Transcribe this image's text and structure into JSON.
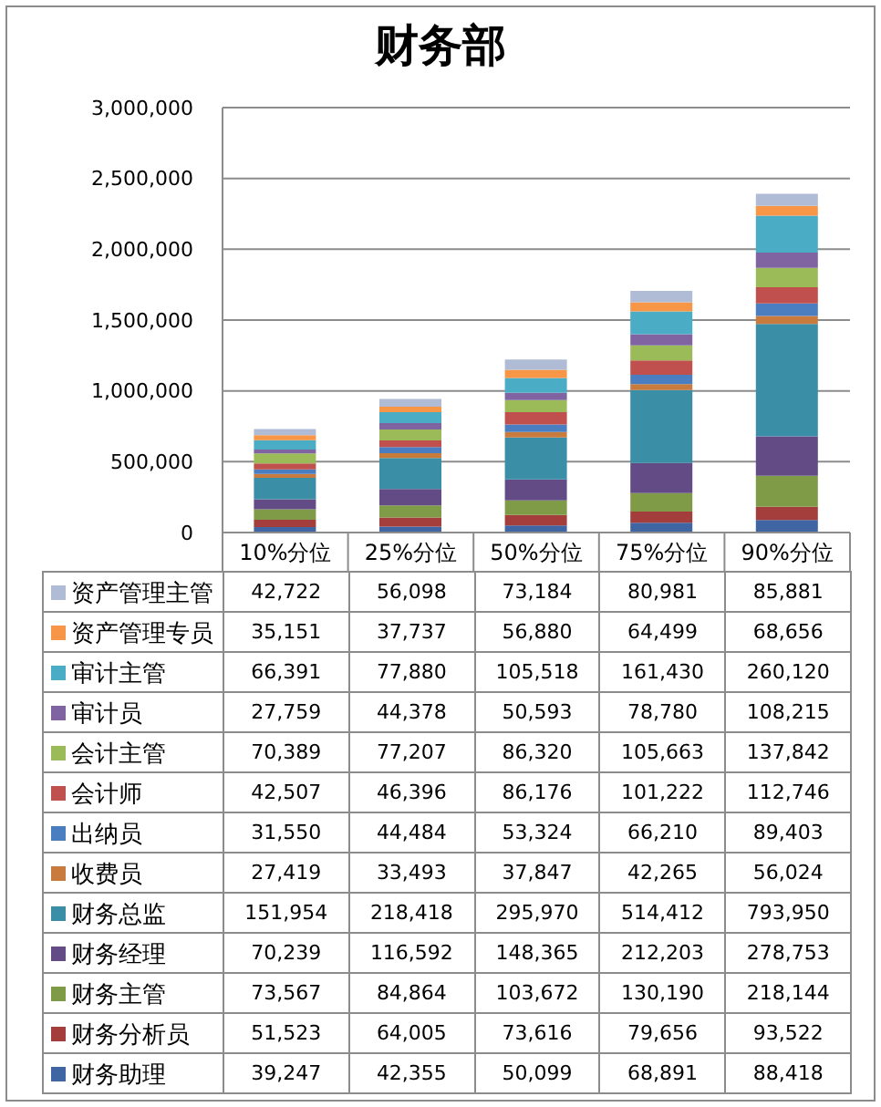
{
  "chart_data": {
    "type": "bar",
    "title": "财务部",
    "categories": [
      "10%分位",
      "25%分位",
      "50%分位",
      "75%分位",
      "90%分位"
    ],
    "series": [
      {
        "name": "财务助理",
        "color": "#3f65a3",
        "values": [
          39247,
          42355,
          50099,
          68891,
          88418
        ],
        "value_labels": [
          "39,247",
          "42,355",
          "50,099",
          "68,891",
          "88,418"
        ]
      },
      {
        "name": "财务分析员",
        "color": "#a33e3c",
        "values": [
          51523,
          64005,
          73616,
          79656,
          93522
        ],
        "value_labels": [
          "51,523",
          "64,005",
          "73,616",
          "79,656",
          "93,522"
        ]
      },
      {
        "name": "财务主管",
        "color": "#809b47",
        "values": [
          73567,
          84864,
          103672,
          130190,
          218144
        ],
        "value_labels": [
          "73,567",
          "84,864",
          "103,672",
          "130,190",
          "218,144"
        ]
      },
      {
        "name": "财务经理",
        "color": "#634c85",
        "values": [
          70239,
          116592,
          148365,
          212203,
          278753
        ],
        "value_labels": [
          "70,239",
          "116,592",
          "148,365",
          "212,203",
          "278,753"
        ]
      },
      {
        "name": "财务总监",
        "color": "#3a8ea6",
        "values": [
          151954,
          218418,
          295970,
          514412,
          793950
        ],
        "value_labels": [
          "151,954",
          "218,418",
          "295,970",
          "514,412",
          "793,950"
        ]
      },
      {
        "name": "收费员",
        "color": "#c97b3e",
        "values": [
          27419,
          33493,
          37847,
          42265,
          56024
        ],
        "value_labels": [
          "27,419",
          "33,493",
          "37,847",
          "42,265",
          "56,024"
        ]
      },
      {
        "name": "出纳员",
        "color": "#4a7ec0",
        "values": [
          31550,
          44484,
          53324,
          66210,
          89403
        ],
        "value_labels": [
          "31,550",
          "44,484",
          "53,324",
          "66,210",
          "89,403"
        ]
      },
      {
        "name": "会计师",
        "color": "#c0504d",
        "values": [
          42507,
          46396,
          86176,
          101222,
          112746
        ],
        "value_labels": [
          "42,507",
          "46,396",
          "86,176",
          "101,222",
          "112,746"
        ]
      },
      {
        "name": "会计主管",
        "color": "#9bbb59",
        "values": [
          70389,
          77207,
          86320,
          105663,
          137842
        ],
        "value_labels": [
          "70,389",
          "77,207",
          "86,320",
          "105,663",
          "137,842"
        ]
      },
      {
        "name": "审计员",
        "color": "#8064a2",
        "values": [
          27759,
          44378,
          50593,
          78780,
          108215
        ],
        "value_labels": [
          "27,759",
          "44,378",
          "50,593",
          "78,780",
          "108,215"
        ]
      },
      {
        "name": "审计主管",
        "color": "#4bacc6",
        "values": [
          66391,
          77880,
          105518,
          161430,
          260120
        ],
        "value_labels": [
          "66,391",
          "77,880",
          "105,518",
          "161,430",
          "260,120"
        ]
      },
      {
        "name": "资产管理专员",
        "color": "#f79646",
        "values": [
          35151,
          37737,
          56880,
          64499,
          68656
        ],
        "value_labels": [
          "35,151",
          "37,737",
          "56,880",
          "64,499",
          "68,656"
        ]
      },
      {
        "name": "资产管理主管",
        "color": "#b0bcd5",
        "values": [
          42722,
          56098,
          73184,
          80981,
          85881
        ],
        "value_labels": [
          "42,722",
          "56,098",
          "73,184",
          "80,981",
          "85,881"
        ]
      }
    ],
    "stacked": true,
    "ylim": [
      0,
      3000000
    ],
    "yticks": [
      0,
      {
        "value": 500000,
        "label": "500,000"
      },
      {
        "value": 1000000,
        "label": "1,000,000"
      },
      {
        "value": 1500000,
        "label": "1,500,000"
      },
      {
        "value": 2000000,
        "label": "2,000,000"
      },
      {
        "value": 2500000,
        "label": "2,500,000"
      },
      {
        "value": 3000000,
        "label": "3,000,000"
      }
    ],
    "grid": "y",
    "legend": "bottom"
  }
}
